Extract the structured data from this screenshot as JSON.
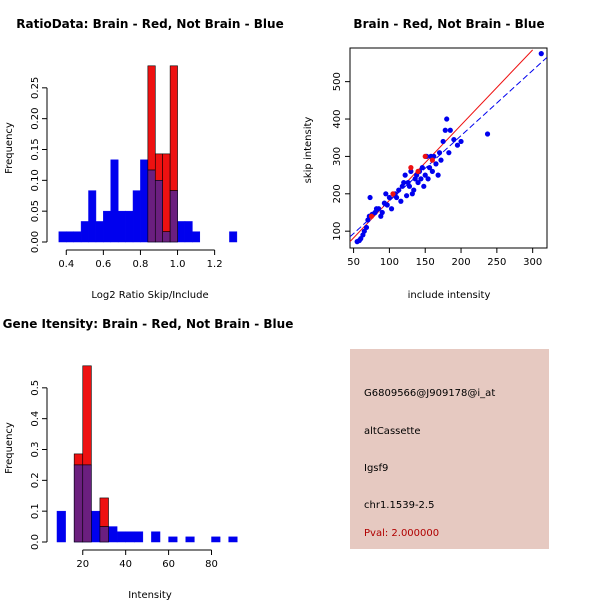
{
  "colors": {
    "red": "#ee1111",
    "blue": "#0000ee",
    "overlap": "#6b1f7f",
    "info_bg": "#e6c9c1",
    "pval": "#b00000"
  },
  "chart_data": [
    {
      "type": "bar",
      "subtype": "histogram",
      "title": "RatioData: Brain - Red, Not Brain - Blue",
      "xlabel": "Log2 Ratio Skip/Include",
      "ylabel": "Frequency",
      "xlim": [
        0.35,
        1.38
      ],
      "ylim": [
        0,
        0.3
      ],
      "xticks": [
        "0.4",
        "0.6",
        "0.8",
        "1.0",
        "1.2"
      ],
      "xtick_values": [
        0.4,
        0.6,
        0.8,
        1.0,
        1.2
      ],
      "yticks": [
        "0.00",
        "0.05",
        "0.10",
        "0.15",
        "0.20",
        "0.25"
      ],
      "ytick_values": [
        0,
        0.05,
        0.1,
        0.15,
        0.2,
        0.25
      ],
      "bin_width": 0.04,
      "series": [
        {
          "name": "Not Brain",
          "color": "blue",
          "bins": [
            [
              0.36,
              0.0167
            ],
            [
              0.4,
              0.0167
            ],
            [
              0.44,
              0.0167
            ],
            [
              0.48,
              0.0333
            ],
            [
              0.52,
              0.0833
            ],
            [
              0.56,
              0.0333
            ],
            [
              0.6,
              0.05
            ],
            [
              0.64,
              0.1333
            ],
            [
              0.68,
              0.05
            ],
            [
              0.72,
              0.05
            ],
            [
              0.76,
              0.0833
            ],
            [
              0.8,
              0.1333
            ],
            [
              0.84,
              0.1167
            ],
            [
              0.88,
              0.1
            ],
            [
              0.92,
              0.0167
            ],
            [
              0.96,
              0.0833
            ],
            [
              1.0,
              0.0333
            ],
            [
              1.04,
              0.0333
            ],
            [
              1.08,
              0.0167
            ],
            [
              1.28,
              0.0167
            ]
          ]
        },
        {
          "name": "Brain",
          "color": "red",
          "bins": [
            [
              0.84,
              0.2857
            ],
            [
              0.88,
              0.1429
            ],
            [
              0.92,
              0.1429
            ],
            [
              0.96,
              0.2857
            ]
          ]
        }
      ]
    },
    {
      "type": "scatter",
      "title": "Brain - Red, Not Brain - Blue",
      "xlabel": "include intensity",
      "ylabel": "skip intensity",
      "xlim": [
        45,
        320
      ],
      "ylim": [
        55,
        590
      ],
      "xticks": [
        "50",
        "100",
        "150",
        "200",
        "250",
        "300"
      ],
      "xtick_values": [
        50,
        100,
        150,
        200,
        250,
        300
      ],
      "yticks": [
        "100",
        "200",
        "300",
        "400",
        "500"
      ],
      "ytick_values": [
        100,
        200,
        300,
        400,
        500
      ],
      "series": [
        {
          "name": "Not Brain",
          "color": "blue",
          "points": [
            [
              55,
              72
            ],
            [
              58,
              75
            ],
            [
              60,
              80
            ],
            [
              63,
              90
            ],
            [
              65,
              100
            ],
            [
              68,
              110
            ],
            [
              70,
              130
            ],
            [
              72,
              140
            ],
            [
              73,
              190
            ],
            [
              76,
              145
            ],
            [
              80,
              150
            ],
            [
              82,
              160
            ],
            [
              85,
              160
            ],
            [
              88,
              140
            ],
            [
              90,
              150
            ],
            [
              93,
              175
            ],
            [
              95,
              200
            ],
            [
              97,
              170
            ],
            [
              100,
              190
            ],
            [
              103,
              160
            ],
            [
              108,
              200
            ],
            [
              110,
              190
            ],
            [
              113,
              210
            ],
            [
              116,
              180
            ],
            [
              118,
              220
            ],
            [
              120,
              230
            ],
            [
              122,
              250
            ],
            [
              124,
              195
            ],
            [
              126,
              230
            ],
            [
              128,
              220
            ],
            [
              130,
              260
            ],
            [
              132,
              200
            ],
            [
              134,
              210
            ],
            [
              136,
              240
            ],
            [
              138,
              250
            ],
            [
              140,
              230
            ],
            [
              142,
              260
            ],
            [
              144,
              240
            ],
            [
              146,
              270
            ],
            [
              148,
              220
            ],
            [
              150,
              250
            ],
            [
              152,
              300
            ],
            [
              154,
              240
            ],
            [
              156,
              270
            ],
            [
              158,
              300
            ],
            [
              160,
              260
            ],
            [
              162,
              300
            ],
            [
              165,
              280
            ],
            [
              168,
              250
            ],
            [
              170,
              310
            ],
            [
              172,
              290
            ],
            [
              175,
              340
            ],
            [
              178,
              370
            ],
            [
              180,
              400
            ],
            [
              183,
              310
            ],
            [
              185,
              370
            ],
            [
              190,
              345
            ],
            [
              195,
              330
            ],
            [
              200,
              340
            ],
            [
              237,
              360
            ],
            [
              312,
              575
            ]
          ]
        },
        {
          "name": "Brain",
          "color": "red",
          "points": [
            [
              75,
              140
            ],
            [
              105,
              200
            ],
            [
              130,
              270
            ],
            [
              140,
              260
            ],
            [
              150,
              300
            ],
            [
              160,
              290
            ]
          ]
        }
      ],
      "fit_lines": [
        {
          "name": "Brain",
          "color": "red",
          "points": [
            [
              45,
              72
            ],
            [
              300,
              585
            ]
          ]
        },
        {
          "name": "Not Brain",
          "color": "blue",
          "style": "dashed",
          "points": [
            [
              45,
              85
            ],
            [
              320,
              565
            ]
          ]
        }
      ]
    },
    {
      "type": "bar",
      "subtype": "histogram",
      "title": "Gene Itensity: Brain - Red, Not Brain - Blue",
      "xlabel": "Intensity",
      "ylabel": "Frequency",
      "xlim": [
        8,
        97
      ],
      "ylim": [
        0,
        0.6
      ],
      "xticks": [
        "20",
        "40",
        "60",
        "80"
      ],
      "xtick_values": [
        20,
        40,
        60,
        80
      ],
      "yticks": [
        "0.0",
        "0.1",
        "0.2",
        "0.3",
        "0.4",
        "0.5"
      ],
      "ytick_values": [
        0,
        0.1,
        0.2,
        0.3,
        0.4,
        0.5
      ],
      "bin_width": 4,
      "series": [
        {
          "name": "Not Brain",
          "color": "blue",
          "bins": [
            [
              8,
              0.1
            ],
            [
              16,
              0.25
            ],
            [
              20,
              0.25
            ],
            [
              24,
              0.1
            ],
            [
              28,
              0.05
            ],
            [
              32,
              0.05
            ],
            [
              36,
              0.0333
            ],
            [
              40,
              0.0333
            ],
            [
              44,
              0.0333
            ],
            [
              52,
              0.0333
            ],
            [
              60,
              0.0167
            ],
            [
              68,
              0.0167
            ],
            [
              80,
              0.0167
            ],
            [
              88,
              0.0167
            ]
          ]
        },
        {
          "name": "Brain",
          "color": "red",
          "bins": [
            [
              16,
              0.2857
            ],
            [
              20,
              0.5714
            ],
            [
              28,
              0.1429
            ]
          ]
        }
      ]
    }
  ],
  "info": {
    "probe_id": "G6809566@J909178@i_at",
    "event_type": "altCassette",
    "gene": "Igsf9",
    "location": "chr1.1539-2.5",
    "pval": "Pval: 2.000000"
  }
}
